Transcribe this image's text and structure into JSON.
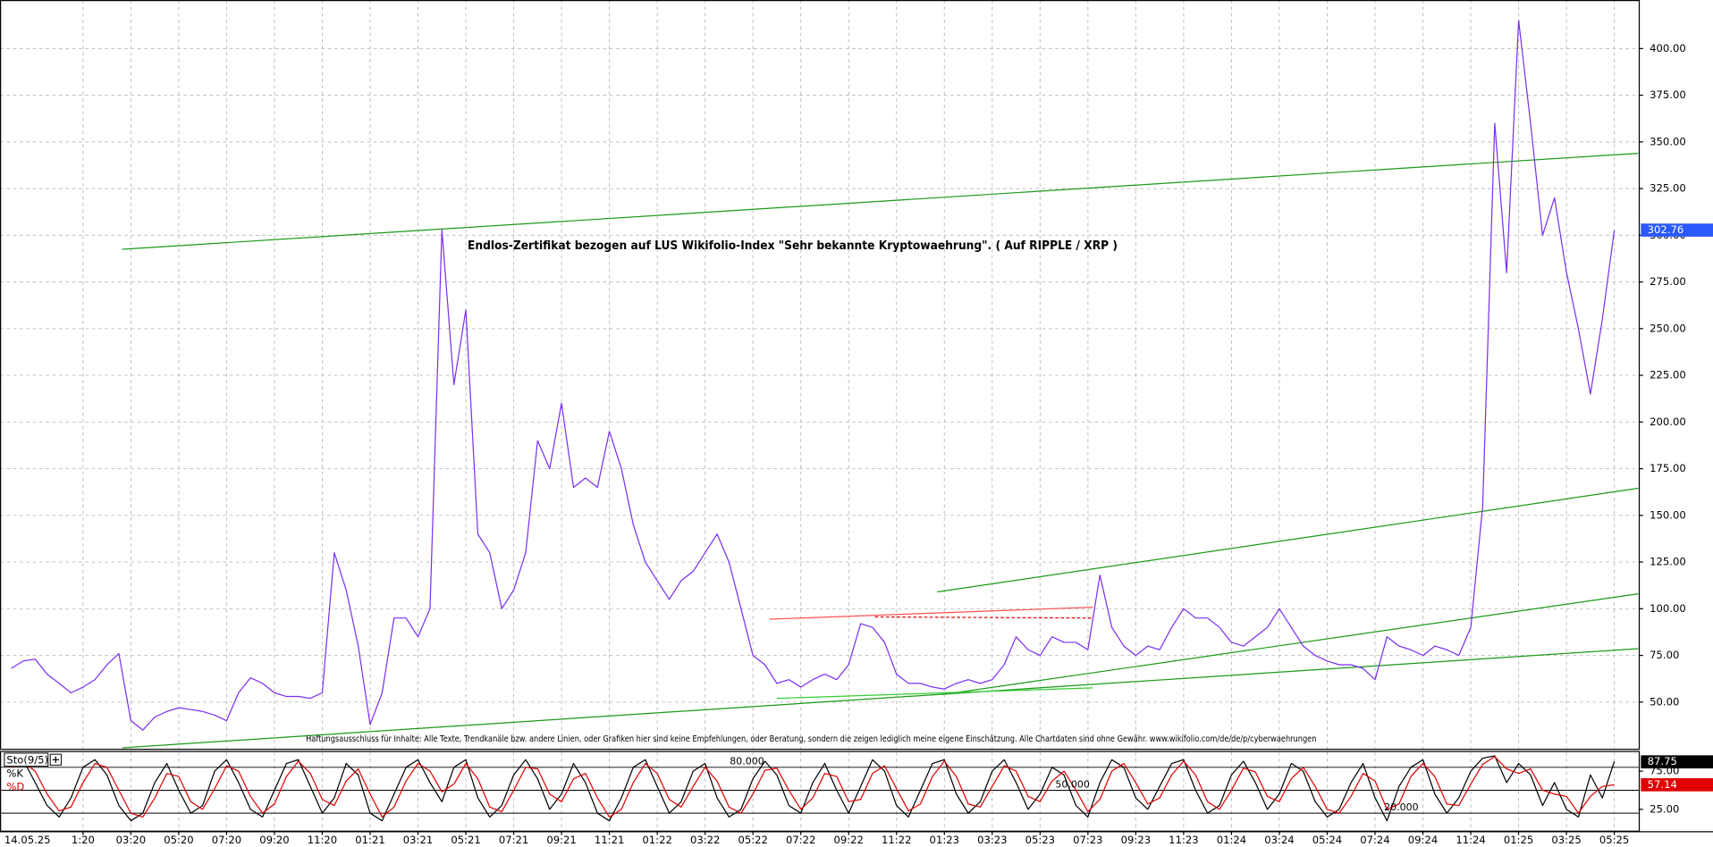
{
  "chart_data": [
    {
      "type": "line",
      "annotation": "Endlos-Zertifikat bezogen auf LUS Wikifolio-Index \"Sehr bekannte Kryptowaehrung\". ( Auf RIPPLE / XRP )",
      "disclaimer": "Haftungsausschluss für Inhalte: Alle Texte, Trendkanäle bzw. andere Linien, oder Grafiken hier sind keine Empfehlungen, oder Beratung, sondern die zeigen lediglich meine eigene Einschätzung. Alle Chartdaten sind ohne Gewähr. www.wikifolio.com/de/de/p/cyberwaehrungen",
      "cursor_date": "14.05.25",
      "x": [
        -3,
        -2.5,
        -2,
        -1.5,
        -1,
        -0.5,
        0,
        0.5,
        1,
        1.5,
        2,
        2.5,
        3,
        3.5,
        4,
        4.5,
        5,
        5.5,
        6,
        6.5,
        7,
        7.5,
        8,
        8.5,
        9,
        9.5,
        10,
        10.5,
        11,
        11.5,
        12,
        12.5,
        13,
        13.5,
        14,
        14.5,
        15,
        15.5,
        16,
        16.5,
        17,
        17.5,
        18,
        18.5,
        19,
        19.5,
        20,
        20.5,
        21,
        21.5,
        22,
        22.5,
        23,
        23.5,
        24,
        24.5,
        25,
        25.5,
        26,
        26.5,
        27,
        27.5,
        28,
        28.5,
        29,
        29.5,
        30,
        30.5,
        31,
        31.5,
        32,
        32.5,
        33,
        33.5,
        34,
        34.5,
        35,
        35.5,
        36,
        36.5,
        37,
        37.5,
        38,
        38.5,
        39,
        39.5,
        40,
        40.5,
        41,
        41.5,
        42,
        42.5,
        43,
        43.5,
        44,
        44.5,
        45,
        45.5,
        46,
        46.5,
        47,
        47.5,
        48,
        48.5,
        49,
        49.5,
        50,
        50.5,
        51,
        51.5,
        52,
        52.5,
        53,
        53.5,
        54,
        54.5,
        55,
        55.5,
        56,
        56.5,
        57,
        57.5,
        58,
        58.5,
        59,
        59.5,
        60,
        60.5,
        61,
        61.5,
        62,
        62.5,
        63,
        63.5,
        64
      ],
      "series": [
        {
          "color": "#7a2ff2",
          "values": [
            68,
            72,
            73,
            65,
            60,
            55,
            58,
            62,
            70,
            76,
            40,
            35,
            42,
            45,
            47,
            46,
            45,
            43,
            40,
            55,
            63,
            60,
            55,
            53,
            53,
            52,
            55,
            130,
            110,
            80,
            38,
            55,
            95,
            95,
            85,
            100,
            303,
            220,
            260,
            140,
            130,
            100,
            110,
            130,
            190,
            175,
            210,
            165,
            170,
            165,
            195,
            175,
            145,
            125,
            115,
            105,
            115,
            120,
            130,
            140,
            125,
            100,
            75,
            70,
            60,
            62,
            58,
            62,
            65,
            62,
            70,
            92,
            90,
            82,
            65,
            60,
            60,
            58,
            57,
            60,
            62,
            60,
            62,
            70,
            85,
            78,
            75,
            85,
            82,
            82,
            78,
            118,
            90,
            80,
            75,
            80,
            78,
            90,
            100,
            95,
            95,
            90,
            82,
            80,
            85,
            90,
            100,
            90,
            80,
            75,
            72,
            70,
            70,
            68,
            62,
            85,
            80,
            78,
            75,
            80,
            78,
            75,
            90,
            155,
            360,
            280,
            415,
            360,
            300,
            320,
            280,
            250,
            215,
            255,
            302.76
          ]
        }
      ],
      "last_value_color": "#2b59ff",
      "xlim": [
        -3.47,
        65.02
      ],
      "xticks": [
        {
          "value": 0,
          "label": "1:20"
        },
        {
          "value": 2,
          "label": "03:20"
        },
        {
          "value": 4,
          "label": "05:20"
        },
        {
          "value": 6,
          "label": "07:20"
        },
        {
          "value": 8,
          "label": "09:20"
        },
        {
          "value": 10,
          "label": "11:20"
        },
        {
          "value": 12,
          "label": "01:21"
        },
        {
          "value": 14,
          "label": "03:21"
        },
        {
          "value": 16,
          "label": "05:21"
        },
        {
          "value": 18,
          "label": "07:21"
        },
        {
          "value": 20,
          "label": "09:21"
        },
        {
          "value": 22,
          "label": "11:21"
        },
        {
          "value": 24,
          "label": "01:22"
        },
        {
          "value": 26,
          "label": "03:22"
        },
        {
          "value": 28,
          "label": "05:22"
        },
        {
          "value": 30,
          "label": "07:22"
        },
        {
          "value": 32,
          "label": "09:22"
        },
        {
          "value": 34,
          "label": "11:22"
        },
        {
          "value": 36,
          "label": "01:23"
        },
        {
          "value": 38,
          "label": "03:23"
        },
        {
          "value": 40,
          "label": "05:23"
        },
        {
          "value": 42,
          "label": "07:23"
        },
        {
          "value": 44,
          "label": "09:23"
        },
        {
          "value": 46,
          "label": "11:23"
        },
        {
          "value": 48,
          "label": "01:24"
        },
        {
          "value": 50,
          "label": "03:24"
        },
        {
          "value": 52,
          "label": "05:24"
        },
        {
          "value": 54,
          "label": "07:24"
        },
        {
          "value": 56,
          "label": "09:24"
        },
        {
          "value": 58,
          "label": "11:24"
        },
        {
          "value": 60,
          "label": "01:25"
        },
        {
          "value": 62,
          "label": "03:25"
        },
        {
          "value": 64,
          "label": "05:25"
        }
      ],
      "ylim": [
        25,
        426
      ],
      "yticks": [
        {
          "value": 50,
          "label": "50.00"
        },
        {
          "value": 75,
          "label": "75.00"
        },
        {
          "value": 100,
          "label": "100.00"
        },
        {
          "value": 125,
          "label": "125.00"
        },
        {
          "value": 150,
          "label": "150.00"
        },
        {
          "value": 175,
          "label": "175.00"
        },
        {
          "value": 200,
          "label": "200.00"
        },
        {
          "value": 225,
          "label": "225.00"
        },
        {
          "value": 250,
          "label": "250.00"
        },
        {
          "value": 275,
          "label": "275.00"
        },
        {
          "value": 300,
          "label": "300.00"
        },
        {
          "value": 325,
          "label": "325.00"
        },
        {
          "value": 350,
          "label": "350.00"
        },
        {
          "value": 375,
          "label": "375.00"
        },
        {
          "value": 400,
          "label": "400.00"
        }
      ],
      "grid": true,
      "trendlines": [
        {
          "color": "#1a9a1a",
          "dashed": false,
          "points": [
            [
              1.64,
              292.5
            ],
            [
              65.0,
              343.9
            ]
          ]
        },
        {
          "color": "#1a9a1a",
          "dashed": false,
          "points": [
            [
              35.7,
              109
            ],
            [
              65.0,
              164.5
            ]
          ]
        },
        {
          "color": "#1a9a1a",
          "dashed": false,
          "points": [
            [
              1.64,
              25.5
            ],
            [
              65.0,
              78.6
            ]
          ]
        },
        {
          "color": "#1a9a1a",
          "dashed": false,
          "points": [
            [
              35.9,
              54
            ],
            [
              65.0,
              108
            ]
          ]
        },
        {
          "color": "#33cc33",
          "dashed": false,
          "points": [
            [
              29.0,
              52
            ],
            [
              42.2,
              57.6
            ]
          ]
        },
        {
          "color": "#ff5050",
          "dashed": false,
          "points": [
            [
              28.7,
              94.4
            ],
            [
              42.2,
              100.8
            ]
          ]
        },
        {
          "color": "#e00000",
          "dashed": true,
          "points": [
            [
              33.1,
              95.6
            ],
            [
              42.2,
              95
            ]
          ]
        }
      ]
    },
    {
      "type": "line",
      "title": "Sto(9/5)",
      "series": [
        {
          "name": "%K",
          "color": "#000000",
          "values": [
            85,
            90,
            60,
            30,
            15,
            40,
            80,
            90,
            70,
            30,
            10,
            20,
            60,
            85,
            50,
            20,
            30,
            75,
            90,
            60,
            25,
            15,
            50,
            85,
            90,
            55,
            20,
            40,
            85,
            70,
            20,
            10,
            45,
            80,
            90,
            60,
            35,
            80,
            90,
            40,
            15,
            30,
            70,
            90,
            65,
            25,
            45,
            85,
            60,
            20,
            10,
            40,
            80,
            90,
            55,
            20,
            35,
            75,
            85,
            40,
            15,
            25,
            65,
            88,
            70,
            30,
            20,
            60,
            85,
            50,
            20,
            55,
            90,
            75,
            30,
            15,
            50,
            85,
            90,
            45,
            20,
            35,
            75,
            90,
            60,
            25,
            45,
            80,
            70,
            30,
            15,
            60,
            90,
            80,
            40,
            25,
            55,
            85,
            90,
            50,
            20,
            30,
            70,
            88,
            60,
            25,
            45,
            85,
            75,
            35,
            15,
            25,
            60,
            85,
            40,
            10,
            55,
            80,
            90,
            45,
            20,
            40,
            75,
            92,
            95,
            60,
            85,
            70,
            30,
            60,
            25,
            15,
            70,
            40,
            87.75
          ]
        },
        {
          "name": "%D",
          "color": "#e00000",
          "values": [
            80,
            87,
            75,
            45,
            23,
            28,
            60,
            85,
            80,
            50,
            20,
            15,
            40,
            72,
            68,
            35,
            25,
            52,
            82,
            75,
            42,
            20,
            32,
            68,
            88,
            72,
            38,
            30,
            62,
            78,
            45,
            15,
            28,
            62,
            85,
            75,
            48,
            58,
            85,
            65,
            28,
            22,
            50,
            80,
            78,
            45,
            35,
            65,
            72,
            40,
            15,
            25,
            60,
            85,
            72,
            38,
            28,
            55,
            80,
            62,
            28,
            20,
            45,
            76,
            79,
            50,
            25,
            40,
            72,
            68,
            35,
            38,
            72,
            82,
            52,
            23,
            32,
            68,
            88,
            68,
            32,
            28,
            55,
            82,
            75,
            42,
            35,
            62,
            75,
            50,
            22,
            38,
            75,
            85,
            60,
            32,
            40,
            70,
            88,
            70,
            35,
            25,
            50,
            79,
            74,
            42,
            35,
            65,
            80,
            55,
            25,
            20,
            42,
            72,
            62,
            25,
            32,
            68,
            85,
            68,
            32,
            30,
            58,
            84,
            94,
            78,
            72,
            78,
            50,
            45,
            42,
            20,
            42,
            55,
            57.14
          ]
        }
      ],
      "ylim": [
        0,
        100
      ],
      "yticks": [
        {
          "value": 25,
          "label": "25.00"
        },
        {
          "value": 75,
          "label": "75.00"
        }
      ],
      "levels": [
        {
          "value": 80,
          "label": "80.000"
        },
        {
          "value": 50,
          "label": "50.000"
        },
        {
          "value": 20,
          "label": "20.000"
        }
      ]
    }
  ]
}
